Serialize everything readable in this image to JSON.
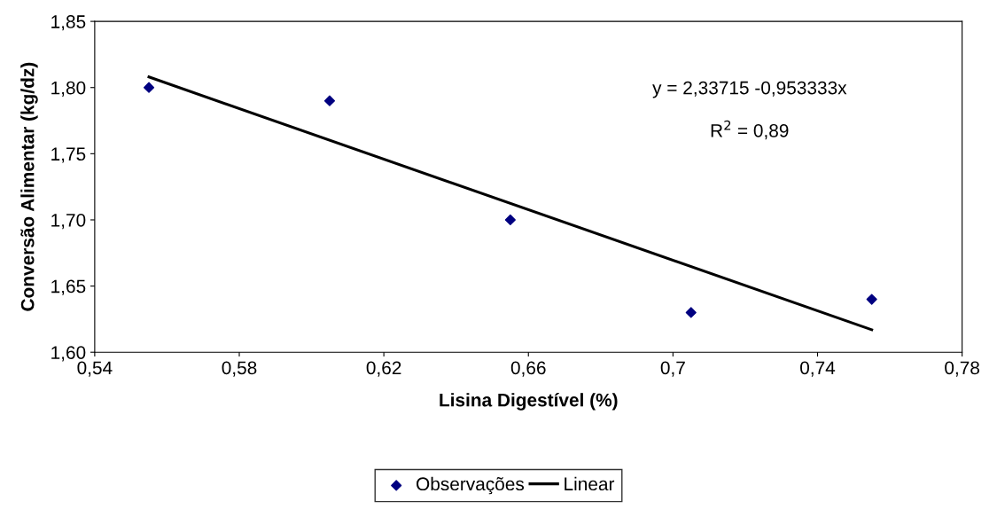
{
  "chart_data": {
    "type": "scatter",
    "xlabel": "Lisina Digestível (%)",
    "ylabel": "Conversão Alimentar (kg/dz)",
    "xlim": [
      0.54,
      0.78
    ],
    "ylim": [
      1.6,
      1.85
    ],
    "xticks": [
      {
        "value": 0.54,
        "label": "0,54"
      },
      {
        "value": 0.58,
        "label": "0,58"
      },
      {
        "value": 0.62,
        "label": "0,62"
      },
      {
        "value": 0.66,
        "label": "0,66"
      },
      {
        "value": 0.7,
        "label": "0,7"
      },
      {
        "value": 0.74,
        "label": "0,74"
      },
      {
        "value": 0.78,
        "label": "0,78"
      }
    ],
    "yticks": [
      {
        "value": 1.6,
        "label": "1,60"
      },
      {
        "value": 1.65,
        "label": "1,65"
      },
      {
        "value": 1.7,
        "label": "1,70"
      },
      {
        "value": 1.75,
        "label": "1,75"
      },
      {
        "value": 1.8,
        "label": "1,80"
      },
      {
        "value": 1.85,
        "label": "1,85"
      }
    ],
    "series": [
      {
        "name": "Observações",
        "marker": "diamond",
        "color": "#000080",
        "x": [
          0.555,
          0.605,
          0.655,
          0.705,
          0.755
        ],
        "values": [
          1.8,
          1.79,
          1.7,
          1.63,
          1.64
        ]
      },
      {
        "name": "Linear",
        "type": "line",
        "marker": "none",
        "line_style": "solid",
        "color": "#000000",
        "x": [
          0.555,
          0.755
        ],
        "values": [
          1.808,
          1.617
        ]
      }
    ],
    "annotations": [
      "y = 2,33715 -0,953333x",
      "R$^{2}$ = 0,89"
    ],
    "grid": false,
    "legend": "bottom"
  }
}
